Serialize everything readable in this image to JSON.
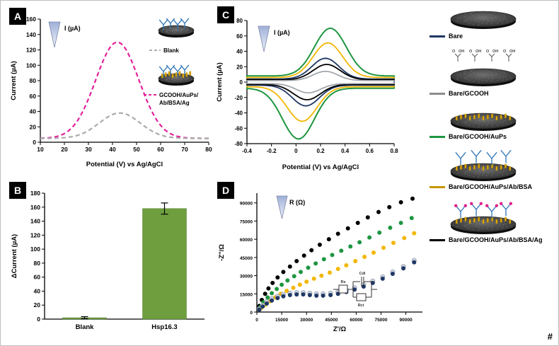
{
  "panels": {
    "a": {
      "label": "A",
      "funnel_label": "I (µA)",
      "legend": {
        "blank": "Blank",
        "mod_line1": "GCOOH/AuPs/",
        "mod_line2": "Ab/BSA/Ag"
      }
    },
    "b": {
      "label": "B"
    },
    "c": {
      "label": "C",
      "funnel_label": "I (µA)"
    },
    "d": {
      "label": "D",
      "funnel_label": "R (Ω)",
      "circuit": {
        "labels": [
          "Rs",
          "Cdl",
          "Rct"
        ]
      }
    },
    "legend": {
      "items": [
        {
          "label": "Bare",
          "color": "#1f3864",
          "disk": "plain"
        },
        {
          "label": "Bare/GCOOH",
          "color": "#8c8c8c",
          "disk": "gcooh"
        },
        {
          "label": "Bare/GCOOH/AuPs",
          "color": "#1e9641",
          "disk": "aups"
        },
        {
          "label": "Bare/GCOOH/AuPs/Ab/BSA",
          "color": "#c79500",
          "disk": "ab"
        },
        {
          "label": "Bare/GCOOH/AuPs/Ab/BSA/Ag",
          "color": "#000000",
          "disk": "ag"
        }
      ]
    },
    "footnote": "#"
  },
  "chart_data": [
    {
      "id": "A",
      "type": "line",
      "xlabel": "Potential (V) vs Ag/AgCl",
      "ylabel": "Current (µA)",
      "xlim": [
        10,
        80
      ],
      "ylim": [
        0,
        160
      ],
      "xticks": {
        "values": [
          10,
          20,
          30,
          40,
          50,
          60,
          70,
          80
        ],
        "labels": [
          "10",
          "20",
          "30",
          "40",
          "50",
          "60",
          "70",
          "80"
        ]
      },
      "yticks": {
        "values": [
          0,
          20,
          40,
          60,
          80,
          100,
          120,
          140,
          160
        ],
        "labels": [
          "0",
          "20",
          "40",
          "60",
          "80",
          "100",
          "120",
          "140",
          "160"
        ]
      },
      "series": [
        {
          "name": "GCOOH/AuPs/Ab/BSA/Ag",
          "color": "#e3219b",
          "line_style": "dashed",
          "baseline": 5,
          "peak": {
            "x": 42,
            "y": 130
          },
          "sigma": 9
        },
        {
          "name": "Blank",
          "color": "#ababab",
          "line_style": "dashed",
          "baseline": 5,
          "peak": {
            "x": 43,
            "y": 38
          },
          "sigma": 8.5
        }
      ]
    },
    {
      "id": "B",
      "type": "bar",
      "ylabel": "ΔCurrent (µA)",
      "categories": [
        "Blank",
        "Hsp16.3"
      ],
      "values": [
        2,
        158
      ],
      "errors": [
        1.5,
        8
      ],
      "bar_color": "#6f9e3f",
      "ylim": [
        0,
        180
      ],
      "yticks": {
        "values": [
          0,
          20,
          40,
          60,
          80,
          100,
          120,
          140,
          160,
          180
        ],
        "labels": [
          "0",
          "20",
          "40",
          "60",
          "80",
          "100",
          "120",
          "140",
          "160",
          "180"
        ]
      }
    },
    {
      "id": "C",
      "type": "cyclic_voltammogram",
      "xlabel": "Potential (V) vs Ag/AgCl",
      "ylabel": "Current (µA)",
      "xlim": [
        -0.4,
        0.8
      ],
      "ylim": [
        -80,
        80
      ],
      "xticks": {
        "values": [
          -0.4,
          -0.2,
          0,
          0.2,
          0.4,
          0.6,
          0.8
        ],
        "labels": [
          "-0.4",
          "-0.2",
          "0",
          "0.2",
          "0.4",
          "0.6",
          "0.8"
        ]
      },
      "yticks": {
        "values": [
          -80,
          -60,
          -40,
          -20,
          0,
          20,
          40,
          60,
          80
        ],
        "labels": [
          "-80",
          "-60",
          "-40",
          "-20",
          "0",
          "20",
          "40",
          "60",
          "80"
        ]
      },
      "series": [
        {
          "name": "Bare/GCOOH/AuPs",
          "color": "#1e9641",
          "anodic_peak": {
            "x": 0.28,
            "y": 62
          },
          "cathodic_peak": {
            "x": 0.02,
            "y": -66
          },
          "sigma": 0.13,
          "cap": 8,
          "width": 2
        },
        {
          "name": "Bare/GCOOH/AuPs/Ab/BSA",
          "color": "#f2b705",
          "anodic_peak": {
            "x": 0.26,
            "y": 45
          },
          "cathodic_peak": {
            "x": 0.05,
            "y": -45
          },
          "sigma": 0.12,
          "cap": 6,
          "width": 1.8
        },
        {
          "name": "Bare",
          "color": "#1f3864",
          "anodic_peak": {
            "x": 0.24,
            "y": 27
          },
          "cathodic_peak": {
            "x": 0.08,
            "y": -27
          },
          "sigma": 0.11,
          "cap": 4,
          "width": 1.8
        },
        {
          "name": "Bare/GCOOH/AuPs/Ab/BSA/Ag",
          "color": "#000000",
          "anodic_peak": {
            "x": 0.25,
            "y": 20
          },
          "cathodic_peak": {
            "x": 0.09,
            "y": -20
          },
          "sigma": 0.11,
          "cap": 3,
          "width": 1.8
        },
        {
          "name": "Bare/GCOOH",
          "color": "#9aa0a6",
          "anodic_peak": {
            "x": 0.24,
            "y": 12
          },
          "cathodic_peak": {
            "x": 0.1,
            "y": -12
          },
          "sigma": 0.1,
          "cap": 2,
          "width": 1.6
        }
      ]
    },
    {
      "id": "D",
      "type": "scatter",
      "xlabel": "Z'/Ω",
      "ylabel": "-Z''/Ω",
      "xlim": [
        0,
        100000
      ],
      "ylim": [
        0,
        98000
      ],
      "xticks": {
        "values": [
          0,
          15000,
          30000,
          45000,
          60000,
          75000,
          90000
        ],
        "labels": [
          "0",
          "15000",
          "30000",
          "45000",
          "60000",
          "75000",
          "90000"
        ]
      },
      "yticks": {
        "values": [
          0,
          15000,
          30000,
          45000,
          60000,
          75000,
          90000
        ],
        "labels": [
          "0",
          "15000",
          "30000",
          "45000",
          "60000",
          "75000",
          "90000"
        ]
      },
      "series": [
        {
          "name": "Bare/GCOOH/AuPs/Ab/BSA/Ag",
          "color": "#000000",
          "points": [
            [
              1500,
              5000
            ],
            [
              3000,
              10000
            ],
            [
              5000,
              15000
            ],
            [
              7000,
              19500
            ],
            [
              9500,
              24000
            ],
            [
              12500,
              28500
            ],
            [
              16000,
              33000
            ],
            [
              20000,
              37500
            ],
            [
              24000,
              42000
            ],
            [
              28500,
              46500
            ],
            [
              33000,
              51000
            ],
            [
              38000,
              55500
            ],
            [
              43500,
              60000
            ],
            [
              49000,
              64500
            ],
            [
              55000,
              69000
            ],
            [
              61000,
              73500
            ],
            [
              67000,
              78000
            ],
            [
              73500,
              82500
            ],
            [
              80000,
              86500
            ],
            [
              87000,
              90500
            ],
            [
              94000,
              93500
            ]
          ]
        },
        {
          "name": "Bare/GCOOH/AuPs",
          "color": "#1e9641",
          "points": [
            [
              2000,
              4000
            ],
            [
              4000,
              8000
            ],
            [
              6500,
              12000
            ],
            [
              9000,
              15500
            ],
            [
              12000,
              19000
            ],
            [
              15000,
              22500
            ],
            [
              18500,
              26000
            ],
            [
              22500,
              29500
            ],
            [
              26500,
              33000
            ],
            [
              31000,
              36500
            ],
            [
              35500,
              40000
            ],
            [
              40500,
              43500
            ],
            [
              45500,
              47000
            ],
            [
              51000,
              50500
            ],
            [
              56500,
              54000
            ],
            [
              62000,
              57500
            ],
            [
              68000,
              61500
            ],
            [
              74000,
              65500
            ],
            [
              80500,
              69500
            ],
            [
              87000,
              73500
            ],
            [
              93500,
              77500
            ]
          ]
        },
        {
          "name": "Bare/GCOOH/AuPs/Ab/BSA",
          "color": "#f2b705",
          "points": [
            [
              2500,
              3000
            ],
            [
              5000,
              6000
            ],
            [
              8000,
              9000
            ],
            [
              11000,
              12000
            ],
            [
              14500,
              15000
            ],
            [
              18000,
              17500
            ],
            [
              22000,
              20000
            ],
            [
              26000,
              22500
            ],
            [
              30000,
              25000
            ],
            [
              34500,
              27500
            ],
            [
              39000,
              30000
            ],
            [
              44000,
              32500
            ],
            [
              49000,
              35500
            ],
            [
              54000,
              38500
            ],
            [
              59500,
              42000
            ],
            [
              65000,
              45500
            ],
            [
              70500,
              49000
            ],
            [
              76500,
              53000
            ],
            [
              82500,
              57000
            ],
            [
              89000,
              61000
            ],
            [
              95000,
              65000
            ]
          ]
        },
        {
          "name": "Bare/GCOOH",
          "color": "#d7dce6",
          "stroke": "#98a1b3",
          "points": [
            [
              1500,
              2500
            ],
            [
              3500,
              5500
            ],
            [
              6000,
              8500
            ],
            [
              9000,
              11000
            ],
            [
              12500,
              13000
            ],
            [
              16000,
              14500
            ],
            [
              20000,
              15500
            ],
            [
              24000,
              16000
            ],
            [
              28000,
              16000
            ],
            [
              32000,
              15500
            ],
            [
              36000,
              15000
            ],
            [
              40000,
              15000
            ],
            [
              44500,
              15500
            ],
            [
              49000,
              16500
            ],
            [
              54000,
              18000
            ],
            [
              59000,
              20000
            ],
            [
              64500,
              22500
            ],
            [
              70000,
              25500
            ],
            [
              76000,
              29000
            ],
            [
              82000,
              33000
            ],
            [
              88500,
              37500
            ],
            [
              95000,
              42500
            ]
          ]
        },
        {
          "name": "Bare",
          "color": "#1f3864",
          "points": [
            [
              1500,
              2000
            ],
            [
              3500,
              4500
            ],
            [
              6000,
              7000
            ],
            [
              9000,
              9500
            ],
            [
              12500,
              11500
            ],
            [
              16000,
              13000
            ],
            [
              20000,
              14000
            ],
            [
              24000,
              14500
            ],
            [
              28000,
              14500
            ],
            [
              32000,
              14000
            ],
            [
              36000,
              13500
            ],
            [
              40000,
              13500
            ],
            [
              44500,
              14000
            ],
            [
              49000,
              15000
            ],
            [
              54000,
              16500
            ],
            [
              59000,
              18500
            ],
            [
              64500,
              21000
            ],
            [
              70000,
              24000
            ],
            [
              76000,
              27500
            ],
            [
              82000,
              31500
            ],
            [
              88500,
              36000
            ],
            [
              95000,
              41000
            ]
          ]
        }
      ]
    }
  ]
}
